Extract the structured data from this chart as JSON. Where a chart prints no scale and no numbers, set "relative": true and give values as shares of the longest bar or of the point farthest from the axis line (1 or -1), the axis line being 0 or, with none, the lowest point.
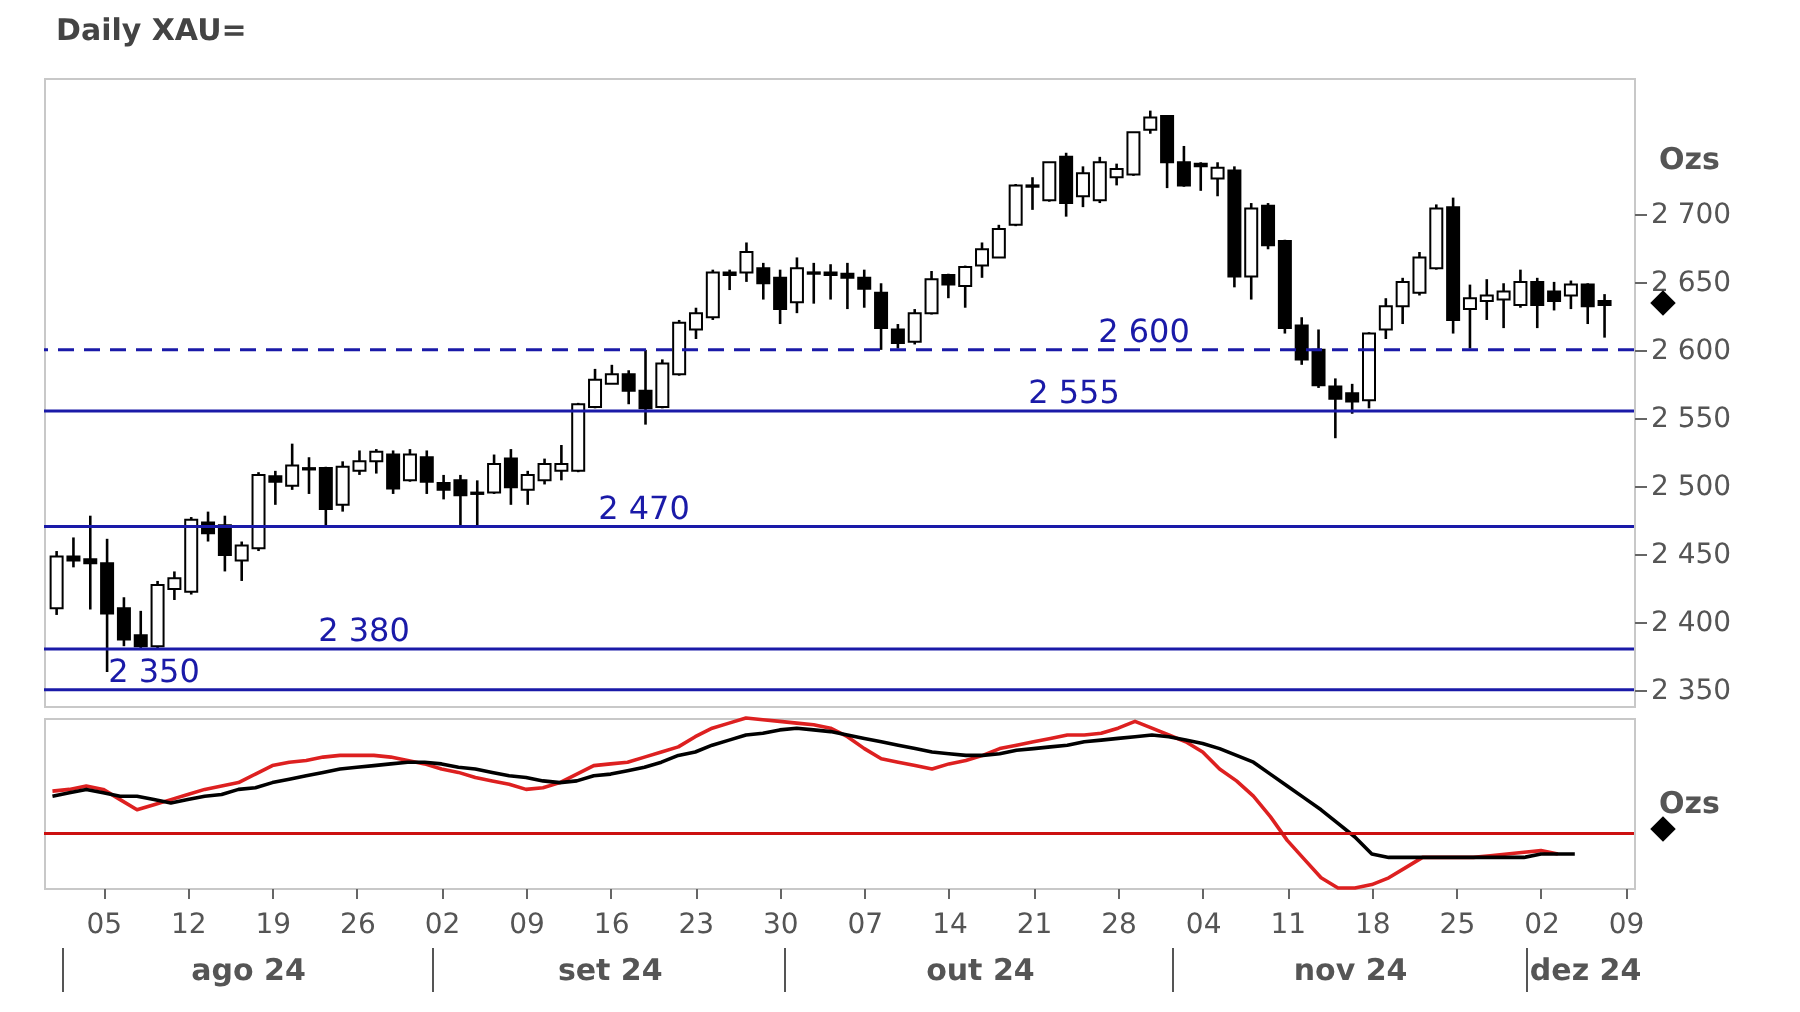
{
  "chart_data": [
    {
      "type": "candlestick",
      "title": "Daily XAU=",
      "ylabel": "Ozs",
      "tick_labels": "y",
      "ylim": [
        2338,
        2800
      ],
      "yticks": [
        {
          "value": 2350,
          "label": "2 350"
        },
        {
          "value": 2400,
          "label": "2 400"
        },
        {
          "value": 2450,
          "label": "2 450"
        },
        {
          "value": 2500,
          "label": "2 500"
        },
        {
          "value": 2550,
          "label": "2 550"
        },
        {
          "value": 2600,
          "label": "2 600"
        },
        {
          "value": 2650,
          "label": "2 650"
        },
        {
          "value": 2700,
          "label": "2 700"
        }
      ],
      "categories": [
        null,
        null,
        null,
        "05",
        null,
        null,
        null,
        null,
        "12",
        null,
        null,
        null,
        null,
        "19",
        null,
        null,
        null,
        null,
        "26",
        null,
        null,
        null,
        null,
        "02",
        null,
        null,
        null,
        null,
        "09",
        null,
        null,
        null,
        null,
        "16",
        null,
        null,
        null,
        null,
        "23",
        null,
        null,
        null,
        null,
        "30",
        null,
        null,
        null,
        null,
        "07",
        null,
        null,
        null,
        null,
        "14",
        null,
        null,
        null,
        null,
        "21",
        null,
        null,
        null,
        null,
        "28",
        null,
        null,
        null,
        null,
        "04",
        null,
        null,
        null,
        null,
        "11",
        null,
        null,
        null,
        null,
        "18",
        null,
        null,
        null,
        null,
        "25",
        null,
        null,
        null,
        null,
        "02",
        null,
        null,
        null,
        null,
        "09"
      ],
      "ohlc": [
        [
          2410,
          2452,
          2405,
          2448
        ],
        [
          2448,
          2462,
          2440,
          2445
        ],
        [
          2446,
          2478,
          2409,
          2443
        ],
        [
          2443,
          2461,
          2363,
          2406
        ],
        [
          2410,
          2418,
          2382,
          2387
        ],
        [
          2390,
          2408,
          2380,
          2382
        ],
        [
          2382,
          2430,
          2380,
          2427
        ],
        [
          2424,
          2437,
          2416,
          2432
        ],
        [
          2422,
          2477,
          2420,
          2475
        ],
        [
          2473,
          2481,
          2459,
          2465
        ],
        [
          2471,
          2478,
          2437,
          2449
        ],
        [
          2445,
          2459,
          2430,
          2456
        ],
        [
          2454,
          2510,
          2452,
          2508
        ],
        [
          2507,
          2511,
          2486,
          2503
        ],
        [
          2500,
          2531,
          2497,
          2515
        ],
        [
          2513,
          2521,
          2494,
          2512
        ],
        [
          2513,
          2514,
          2471,
          2483
        ],
        [
          2486,
          2518,
          2481,
          2514
        ],
        [
          2511,
          2526,
          2508,
          2518
        ],
        [
          2518,
          2527,
          2509,
          2525
        ],
        [
          2523,
          2526,
          2494,
          2498
        ],
        [
          2504,
          2527,
          2503,
          2523
        ],
        [
          2521,
          2526,
          2494,
          2503
        ],
        [
          2502,
          2508,
          2490,
          2497
        ],
        [
          2504,
          2508,
          2471,
          2493
        ],
        [
          2494,
          2504,
          2471,
          2495
        ],
        [
          2495,
          2523,
          2494,
          2516
        ],
        [
          2520,
          2527,
          2486,
          2499
        ],
        [
          2497,
          2511,
          2486,
          2508
        ],
        [
          2504,
          2520,
          2501,
          2516
        ],
        [
          2511,
          2530,
          2504,
          2516
        ],
        [
          2511,
          2561,
          2510,
          2560
        ],
        [
          2558,
          2586,
          2557,
          2578
        ],
        [
          2575,
          2589,
          2575,
          2582
        ],
        [
          2582,
          2585,
          2560,
          2570
        ],
        [
          2570,
          2600,
          2545,
          2557
        ],
        [
          2558,
          2593,
          2557,
          2590
        ],
        [
          2582,
          2622,
          2581,
          2620
        ],
        [
          2615,
          2631,
          2608,
          2627
        ],
        [
          2624,
          2659,
          2622,
          2657
        ],
        [
          2657,
          2659,
          2644,
          2655
        ],
        [
          2657,
          2679,
          2650,
          2672
        ],
        [
          2660,
          2664,
          2637,
          2649
        ],
        [
          2653,
          2659,
          2619,
          2630
        ],
        [
          2635,
          2668,
          2627,
          2660
        ],
        [
          2656,
          2664,
          2634,
          2657
        ],
        [
          2657,
          2663,
          2637,
          2655
        ],
        [
          2656,
          2664,
          2630,
          2653
        ],
        [
          2653,
          2659,
          2631,
          2645
        ],
        [
          2642,
          2649,
          2600,
          2616
        ],
        [
          2615,
          2619,
          2601,
          2605
        ],
        [
          2606,
          2630,
          2604,
          2627
        ],
        [
          2627,
          2658,
          2626,
          2652
        ],
        [
          2655,
          2656,
          2638,
          2648
        ],
        [
          2647,
          2662,
          2631,
          2661
        ],
        [
          2662,
          2679,
          2653,
          2674
        ],
        [
          2668,
          2692,
          2668,
          2689
        ],
        [
          2692,
          2722,
          2691,
          2721
        ],
        [
          2721,
          2727,
          2703,
          2720
        ],
        [
          2710,
          2738,
          2709,
          2738
        ],
        [
          2742,
          2745,
          2698,
          2708
        ],
        [
          2713,
          2735,
          2705,
          2730
        ],
        [
          2710,
          2742,
          2708,
          2738
        ],
        [
          2727,
          2737,
          2721,
          2733
        ],
        [
          2729,
          2760,
          2728,
          2760
        ],
        [
          2762,
          2776,
          2759,
          2771
        ],
        [
          2772,
          2772,
          2719,
          2738
        ],
        [
          2738,
          2750,
          2720,
          2721
        ],
        [
          2737,
          2738,
          2717,
          2735
        ],
        [
          2726,
          2738,
          2713,
          2734
        ],
        [
          2732,
          2735,
          2646,
          2654
        ],
        [
          2654,
          2708,
          2637,
          2704
        ],
        [
          2706,
          2708,
          2674,
          2677
        ],
        [
          2680,
          2681,
          2612,
          2616
        ],
        [
          2618,
          2624,
          2589,
          2593
        ],
        [
          2600,
          2615,
          2572,
          2574
        ],
        [
          2573,
          2579,
          2535,
          2564
        ],
        [
          2568,
          2575,
          2553,
          2562
        ],
        [
          2563,
          2613,
          2557,
          2612
        ],
        [
          2615,
          2638,
          2608,
          2632
        ],
        [
          2632,
          2653,
          2619,
          2650
        ],
        [
          2642,
          2672,
          2640,
          2668
        ],
        [
          2660,
          2707,
          2659,
          2704
        ],
        [
          2705,
          2712,
          2612,
          2622
        ],
        [
          2630,
          2648,
          2601,
          2638
        ],
        [
          2636,
          2652,
          2622,
          2640
        ],
        [
          2637,
          2649,
          2616,
          2643
        ],
        [
          2633,
          2659,
          2631,
          2650
        ],
        [
          2650,
          2653,
          2616,
          2633
        ],
        [
          2643,
          2650,
          2629,
          2636
        ],
        [
          2640,
          2651,
          2630,
          2648
        ],
        [
          2648,
          2649,
          2619,
          2632
        ],
        [
          2636,
          2641,
          2609,
          2633
        ],
        null
      ],
      "ref_lines": [
        {
          "axis": "y",
          "value": 2600,
          "label": "2 600",
          "color": "#1a1aa8",
          "line_style": "dashed"
        },
        {
          "axis": "y",
          "value": 2555,
          "label": "2 555",
          "color": "#1a1aa8"
        },
        {
          "axis": "y",
          "value": 2470,
          "label": "2 470",
          "color": "#1a1aa8"
        },
        {
          "axis": "y",
          "value": 2380,
          "label": "2 380",
          "color": "#1a1aa8"
        },
        {
          "axis": "y",
          "value": 2350,
          "label": "2 350",
          "color": "#1a1aa8"
        }
      ]
    },
    {
      "type": "line",
      "relative": true,
      "ylabel": "Ozs",
      "tick_labels": "x",
      "categories": [
        null,
        null,
        null,
        "05",
        null,
        null,
        null,
        null,
        "12",
        null,
        null,
        null,
        null,
        "19",
        null,
        null,
        null,
        null,
        "26",
        null,
        null,
        null,
        null,
        "02",
        null,
        null,
        null,
        null,
        "09",
        null,
        null,
        null,
        null,
        "16",
        null,
        null,
        null,
        null,
        "23",
        null,
        null,
        null,
        null,
        "30",
        null,
        null,
        null,
        null,
        "07",
        null,
        null,
        null,
        null,
        "14",
        null,
        null,
        null,
        null,
        "21",
        null,
        null,
        null,
        null,
        "28",
        null,
        null,
        null,
        null,
        "04",
        null,
        null,
        null,
        null,
        "11",
        null,
        null,
        null,
        null,
        "18",
        null,
        null,
        null,
        null,
        "25",
        null,
        null,
        null,
        null,
        "02",
        null,
        null,
        null,
        null,
        "09"
      ],
      "series": [
        {
          "color": "#dd2020",
          "values": [
            0.57,
            0.58,
            0.6,
            0.58,
            0.52,
            0.46,
            0.49,
            0.52,
            0.55,
            0.58,
            0.6,
            0.62,
            0.67,
            0.72,
            0.74,
            0.75,
            0.77,
            0.78,
            0.78,
            0.78,
            0.77,
            0.75,
            0.73,
            0.7,
            0.68,
            0.65,
            0.63,
            0.61,
            0.58,
            0.59,
            0.62,
            0.67,
            0.72,
            0.73,
            0.74,
            0.77,
            0.8,
            0.83,
            0.89,
            0.94,
            0.97,
            1,
            0.99,
            0.98,
            0.97,
            0.96,
            0.94,
            0.89,
            0.82,
            0.76,
            0.74,
            0.72,
            0.7,
            0.73,
            0.75,
            0.78,
            0.82,
            0.84,
            0.86,
            0.88,
            0.9,
            0.9,
            0.91,
            0.94,
            0.98,
            0.94,
            0.9,
            0.86,
            0.8,
            0.7,
            0.63,
            0.54,
            0.42,
            0.28,
            0.17,
            0.06,
            0,
            0,
            0.02,
            0.06,
            0.12,
            0.18,
            0.18,
            0.18,
            0.18,
            0.19,
            0.2,
            0.21,
            0.22,
            0.2,
            null,
            null,
            null,
            null
          ]
        },
        {
          "color": "#000000",
          "values": [
            0.54,
            0.56,
            0.58,
            0.56,
            0.54,
            0.54,
            0.52,
            0.5,
            0.52,
            0.54,
            0.55,
            0.58,
            0.59,
            0.62,
            0.64,
            0.66,
            0.68,
            0.7,
            0.71,
            0.72,
            0.73,
            0.74,
            0.74,
            0.73,
            0.71,
            0.7,
            0.68,
            0.66,
            0.65,
            0.63,
            0.62,
            0.63,
            0.66,
            0.67,
            0.69,
            0.71,
            0.74,
            0.78,
            0.8,
            0.84,
            0.87,
            0.9,
            0.91,
            0.93,
            0.94,
            0.93,
            0.92,
            0.9,
            0.88,
            0.86,
            0.84,
            0.82,
            0.8,
            0.79,
            0.78,
            0.78,
            0.79,
            0.81,
            0.82,
            0.83,
            0.84,
            0.86,
            0.87,
            0.88,
            0.89,
            0.9,
            0.89,
            0.87,
            0.85,
            0.82,
            0.78,
            0.74,
            0.67,
            0.6,
            0.53,
            0.46,
            0.38,
            0.3,
            0.2,
            0.18,
            0.18,
            0.18,
            0.18,
            0.18,
            0.18,
            0.18,
            0.18,
            0.18,
            0.2,
            0.2,
            0.2,
            null,
            null,
            null
          ]
        }
      ],
      "ref_lines": [
        {
          "axis": "y",
          "value": 0.32,
          "color": "#cc1010"
        }
      ],
      "annotations": [
        "ago 24",
        "set 24",
        "out 24",
        "nov 24",
        "dez 24"
      ]
    }
  ]
}
